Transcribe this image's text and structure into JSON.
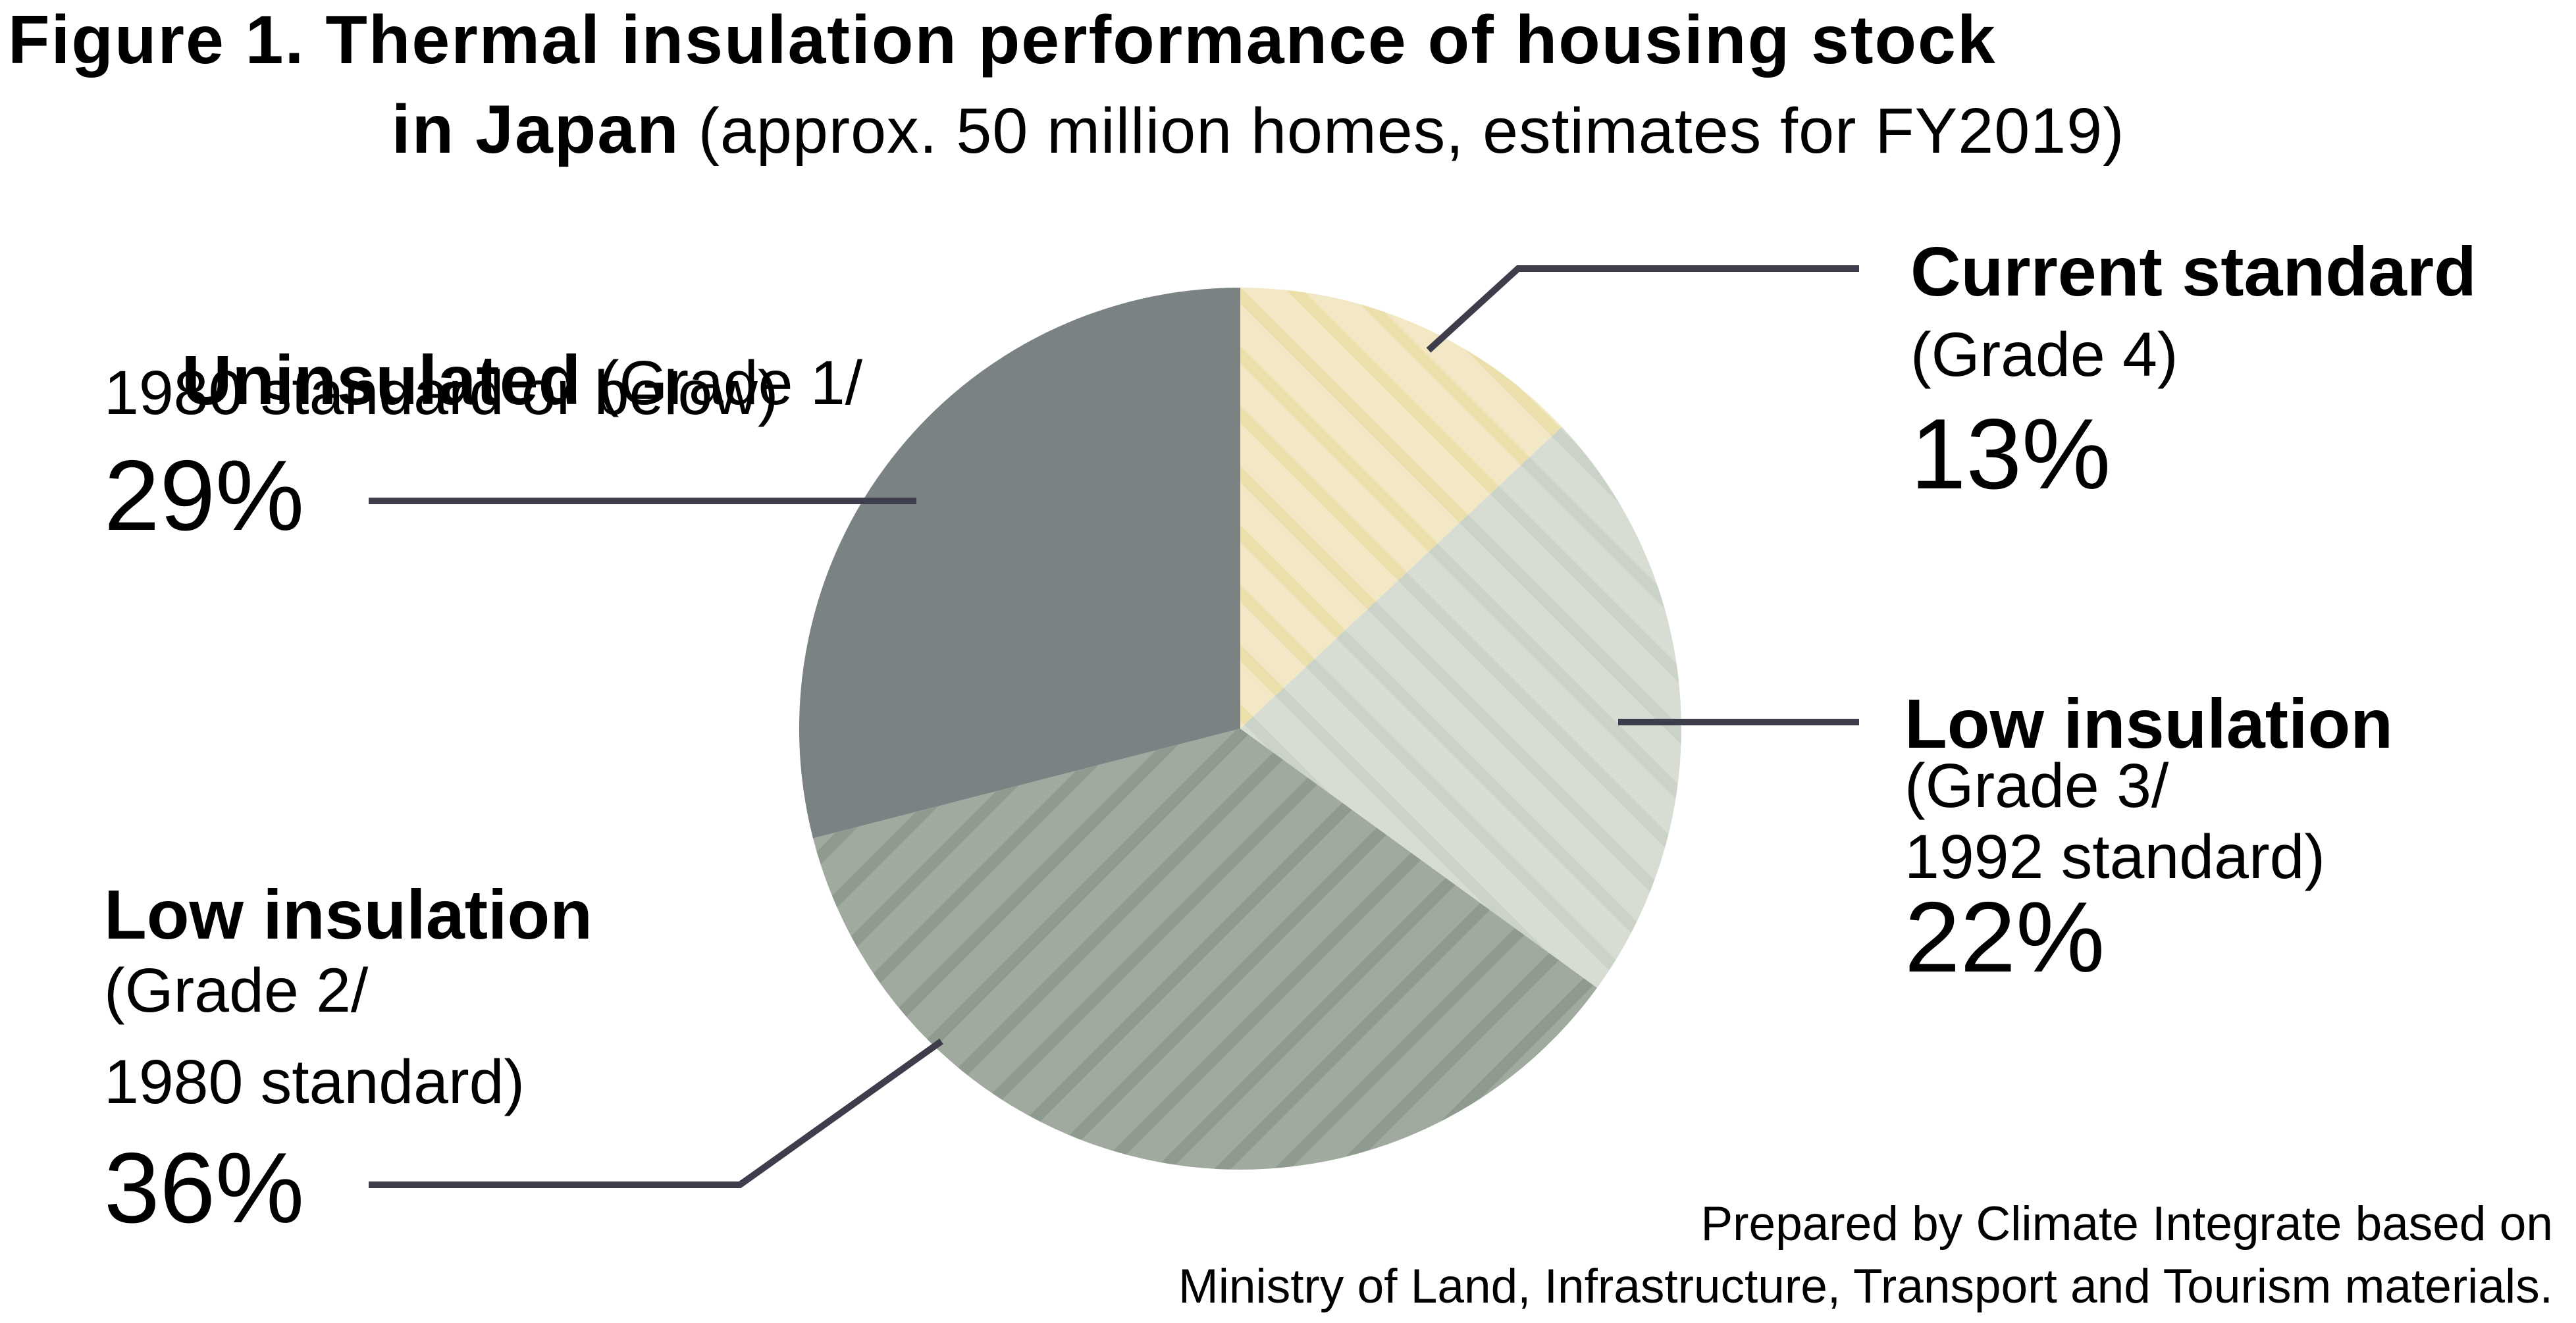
{
  "title": {
    "line1": "Figure 1. Thermal insulation performance of housing stock",
    "line2_bold": "in Japan",
    "line2_note": " (approx. 50 million homes, estimates for FY2019)"
  },
  "callouts": {
    "uninsulated": {
      "name": "Uninsulated",
      "inline_note": " (Grade 1/",
      "detail2": "1980 standard or below)",
      "pct": "29%"
    },
    "current_standard": {
      "name": "Current standard",
      "detail1": "(Grade 4)",
      "pct": "13%"
    },
    "low_insulation_g3": {
      "name": "Low insulation",
      "detail1": "(Grade 3/",
      "detail2": "1992 standard)",
      "pct": "22%"
    },
    "low_insulation_g2": {
      "name": "Low insulation",
      "detail1": "(Grade 2/",
      "detail2": "1980 standard)",
      "pct": "36%"
    }
  },
  "footer": {
    "line1": "Prepared by Climate Integrate based on",
    "line2": "Ministry of Land, Infrastructure, Transport and Tourism materials."
  },
  "colors": {
    "background": "#ffffff",
    "text": "#000000",
    "leader_line": "#3e3d4b"
  },
  "chart_data": {
    "type": "pie",
    "title": "Thermal insulation performance of housing stock in Japan (approx. 50 million homes, estimates for FY2019)",
    "start_angle_deg": 0,
    "direction": "clockwise",
    "legend_position": "callouts",
    "slices": [
      {
        "id": "current-standard",
        "label": "Current standard",
        "grade": "Grade 4",
        "value_pct": 13,
        "fill": "#f2e8c5",
        "hatch": "down-diagonal",
        "hatch_color": "#ebdfac"
      },
      {
        "id": "low-insulation-grade-3",
        "label": "Low insulation",
        "grade": "Grade 3 / 1992 standard",
        "value_pct": 22,
        "fill": "#d8ddd3",
        "hatch": "down-diagonal",
        "hatch_color": "#cbd2c8"
      },
      {
        "id": "low-insulation-grade-2",
        "label": "Low insulation",
        "grade": "Grade 2 / 1980 standard",
        "value_pct": 36,
        "fill": "#a0aa9e",
        "hatch": "up-diagonal",
        "hatch_color": "#909b8f"
      },
      {
        "id": "uninsulated",
        "label": "Uninsulated",
        "grade": "Grade 1 / 1980 standard or below",
        "value_pct": 29,
        "fill": "#7b8283",
        "hatch": "none",
        "hatch_color": null
      }
    ]
  }
}
